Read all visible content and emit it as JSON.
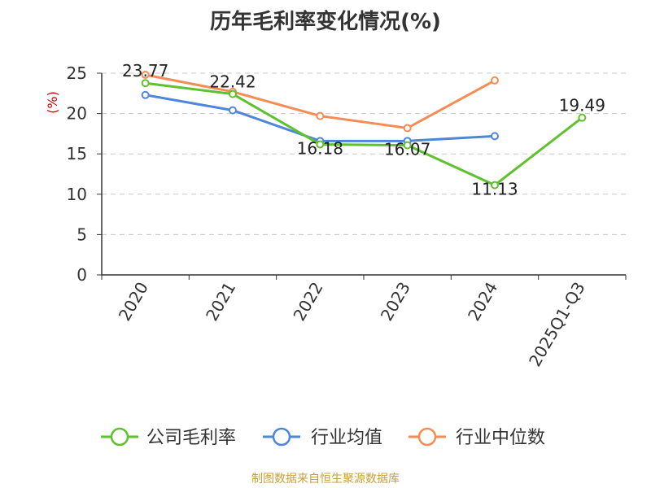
{
  "chart_data": {
    "type": "line",
    "title": "历年毛利率变化情况(%)",
    "ylabel": "(%)",
    "ylabel_color": "#cc0000",
    "xlabel": "",
    "categories": [
      "2020",
      "2021",
      "2022",
      "2023",
      "2024",
      "2025Q1-Q3"
    ],
    "ylim": [
      0,
      25
    ],
    "yticks": [
      0,
      5,
      10,
      15,
      20,
      25
    ],
    "grid": true,
    "legend_position": "bottom",
    "series": [
      {
        "name": "公司毛利率",
        "color": "#5ec12e",
        "values": [
          23.77,
          22.42,
          16.18,
          16.07,
          11.13,
          19.49
        ],
        "labels": [
          "23.77",
          "22.42",
          "16.18",
          "16.07",
          "11.13",
          "19.49"
        ]
      },
      {
        "name": "行业均值",
        "color": "#4e86db",
        "values": [
          22.3,
          20.4,
          16.6,
          16.6,
          17.2,
          null
        ]
      },
      {
        "name": "行业中位数",
        "color": "#f58c55",
        "values": [
          24.8,
          22.7,
          19.7,
          18.2,
          24.1,
          null
        ]
      }
    ]
  },
  "footer": {
    "source": "制图数据来自恒生聚源数据库"
  }
}
